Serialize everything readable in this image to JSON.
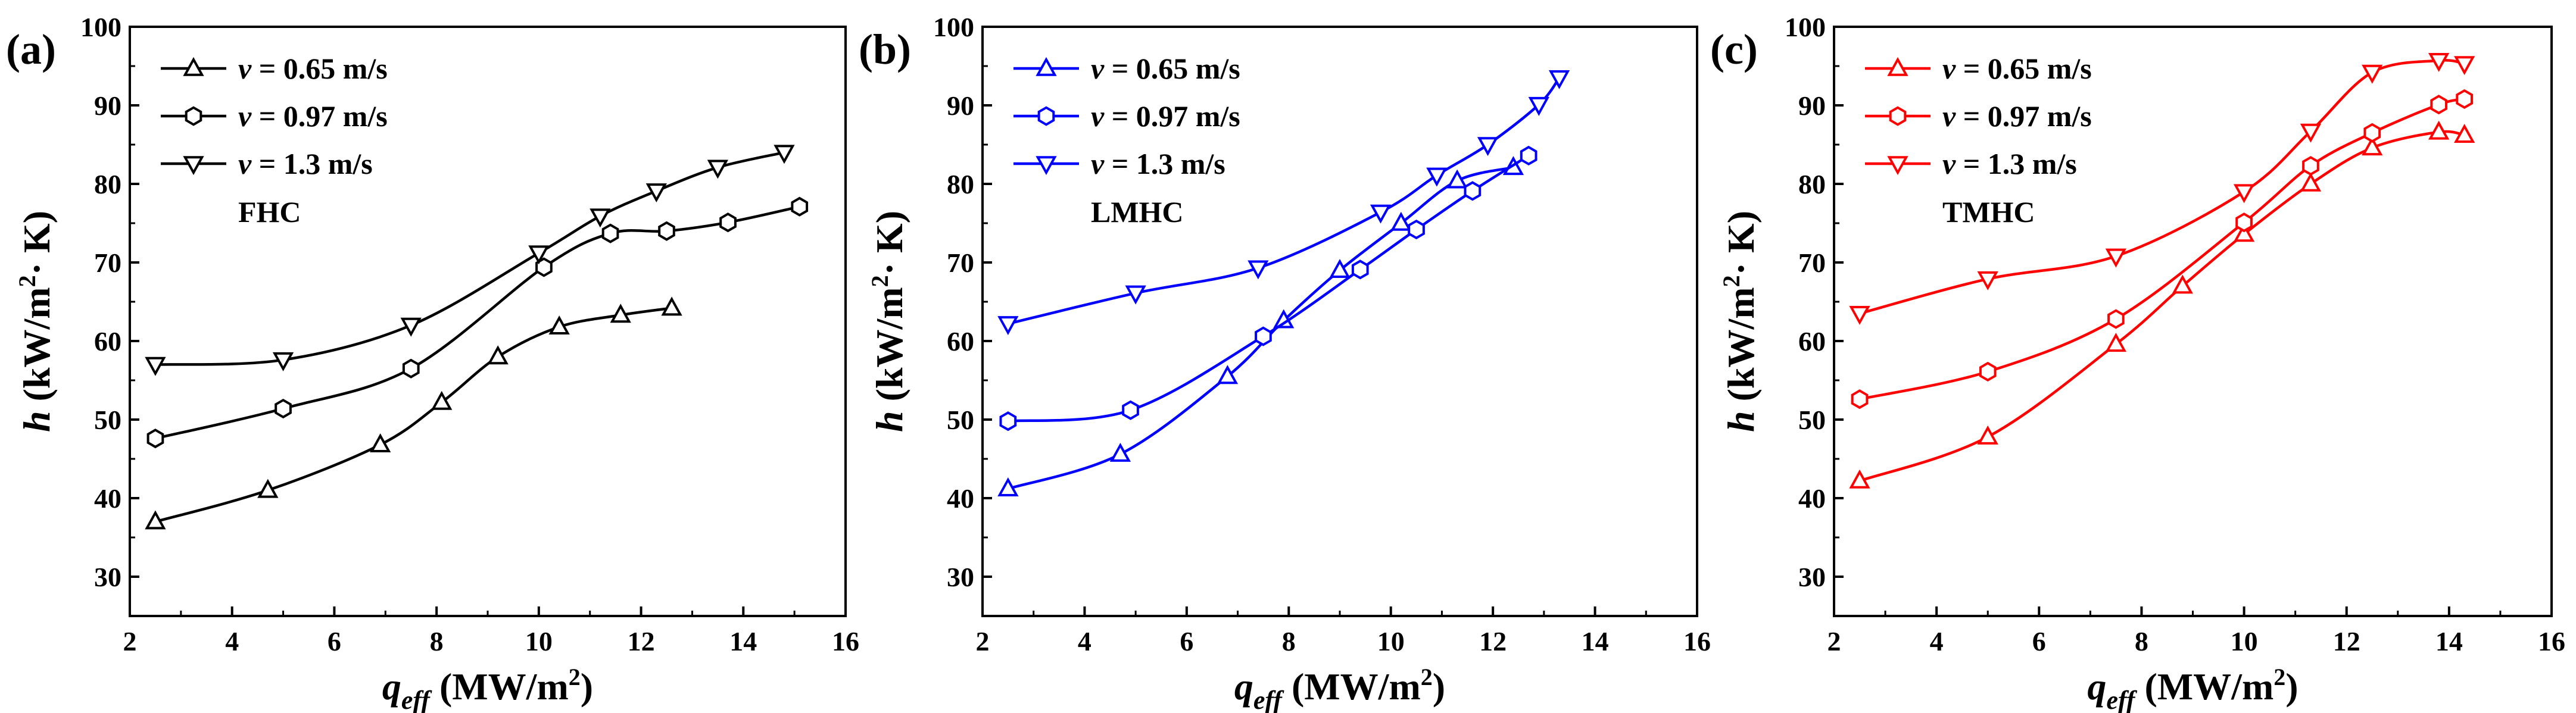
{
  "chart_data": [
    {
      "type": "line",
      "panel_letter": "(a)",
      "tag": "FHC",
      "color": "#000000",
      "xlabel": {
        "main": "q",
        "sub": "eff",
        "rest": " (MW/m",
        "sup": "2",
        "end": ")"
      },
      "ylabel": {
        "main": "h",
        "rest": " (kW/m",
        "sup": "2",
        "end": "· K)"
      },
      "xlim": [
        2,
        16
      ],
      "ylim": [
        25,
        100
      ],
      "xticks": [
        2,
        4,
        6,
        8,
        10,
        12,
        14,
        16
      ],
      "xtick_labels": [
        "2",
        "4",
        "6",
        "8",
        "10",
        "12",
        "14",
        "16"
      ],
      "yticks": [
        30,
        40,
        50,
        60,
        70,
        80,
        90,
        100
      ],
      "ytick_labels": [
        "30",
        "40",
        "50",
        "60",
        "70",
        "80",
        "90",
        "100"
      ],
      "legend_position": "top-left",
      "series": [
        {
          "legend": "v = 0.65 m/s",
          "legend_var": "v",
          "legend_rest": " = 0.65 m/s",
          "marker": "triangle-up",
          "x": [
            2.5,
            4.7,
            6.9,
            8.1,
            9.2,
            10.4,
            11.6,
            12.6
          ],
          "y": [
            37.0,
            41.0,
            46.8,
            52.2,
            58.0,
            61.8,
            63.3,
            64.2
          ]
        },
        {
          "legend": "v = 0.97 m/s",
          "legend_var": "v",
          "legend_rest": " = 0.97 m/s",
          "marker": "hexagon",
          "x": [
            2.5,
            5.0,
            7.5,
            10.1,
            11.4,
            12.5,
            13.7,
            15.1
          ],
          "y": [
            47.6,
            51.4,
            56.5,
            69.4,
            73.7,
            74.0,
            75.1,
            77.1
          ]
        },
        {
          "legend": "v = 1.3 m/s",
          "legend_var": "v",
          "legend_rest": " = 1.3 m/s",
          "marker": "triangle-down",
          "x": [
            2.5,
            5.0,
            7.5,
            10.0,
            11.2,
            12.3,
            13.5,
            14.8
          ],
          "y": [
            57.0,
            57.6,
            62.0,
            71.2,
            75.9,
            79.1,
            82.1,
            84.0
          ]
        }
      ]
    },
    {
      "type": "line",
      "panel_letter": "(b)",
      "tag": "LMHC",
      "color": "#0000ff",
      "xlabel": {
        "main": "q",
        "sub": "eff",
        "rest": " (MW/m",
        "sup": "2",
        "end": ")"
      },
      "ylabel": {
        "main": "h",
        "rest": " (kW/m",
        "sup": "2",
        "end": "· K)"
      },
      "xlim": [
        2,
        16
      ],
      "ylim": [
        25,
        100
      ],
      "xticks": [
        2,
        4,
        6,
        8,
        10,
        12,
        14,
        16
      ],
      "xtick_labels": [
        "2",
        "4",
        "6",
        "8",
        "10",
        "12",
        "14",
        "16"
      ],
      "yticks": [
        30,
        40,
        50,
        60,
        70,
        80,
        90,
        100
      ],
      "ytick_labels": [
        "30",
        "40",
        "50",
        "60",
        "70",
        "80",
        "90",
        "100"
      ],
      "legend_position": "top-left",
      "series": [
        {
          "legend": "v = 0.65 m/s",
          "legend_var": "v",
          "legend_rest": " = 0.65 m/s",
          "marker": "triangle-up",
          "x": [
            2.5,
            4.7,
            6.8,
            7.9,
            9.0,
            10.2,
            11.3,
            12.4
          ],
          "y": [
            41.2,
            45.6,
            55.5,
            62.6,
            69.0,
            75.0,
            80.4,
            82.1
          ]
        },
        {
          "legend": "v = 0.97 m/s",
          "legend_var": "v",
          "legend_rest": " = 0.97 m/s",
          "marker": "hexagon",
          "x": [
            2.5,
            4.9,
            7.5,
            9.4,
            10.5,
            11.6,
            12.7
          ],
          "y": [
            49.8,
            51.2,
            60.6,
            69.1,
            74.2,
            79.1,
            83.6
          ]
        },
        {
          "legend": "v = 1.3 m/s",
          "legend_var": "v",
          "legend_rest": " = 1.3 m/s",
          "marker": "triangle-down",
          "x": [
            2.5,
            5.0,
            7.4,
            9.8,
            10.9,
            11.9,
            12.9,
            13.3
          ],
          "y": [
            62.2,
            66.1,
            69.3,
            76.4,
            81.1,
            85.0,
            90.1,
            93.5
          ]
        }
      ]
    },
    {
      "type": "line",
      "panel_letter": "(c)",
      "tag": "TMHC",
      "color": "#ff0000",
      "xlabel": {
        "main": "q",
        "sub": "eff",
        "rest": " (MW/m",
        "sup": "2",
        "end": ")"
      },
      "ylabel": {
        "main": "h",
        "rest": " (kW/m",
        "sup": "2",
        "end": "· K)"
      },
      "xlim": [
        2,
        16
      ],
      "ylim": [
        25,
        100
      ],
      "xticks": [
        2,
        4,
        6,
        8,
        10,
        12,
        14,
        16
      ],
      "xtick_labels": [
        "2",
        "4",
        "6",
        "8",
        "10",
        "12",
        "14",
        "16"
      ],
      "yticks": [
        30,
        40,
        50,
        60,
        70,
        80,
        90,
        100
      ],
      "ytick_labels": [
        "30",
        "40",
        "50",
        "60",
        "70",
        "80",
        "90",
        "100"
      ],
      "legend_position": "top-left",
      "series": [
        {
          "legend": "v = 0.65 m/s",
          "legend_var": "v",
          "legend_rest": " = 0.65 m/s",
          "marker": "triangle-up",
          "x": [
            2.5,
            5.0,
            7.5,
            8.8,
            10.0,
            11.3,
            12.5,
            13.8,
            14.3
          ],
          "y": [
            42.2,
            47.8,
            59.6,
            67.0,
            73.6,
            80.0,
            84.6,
            86.6,
            86.2
          ]
        },
        {
          "legend": "v = 0.97 m/s",
          "legend_var": "v",
          "legend_rest": " = 0.97 m/s",
          "marker": "hexagon",
          "x": [
            2.5,
            5.0,
            7.5,
            10.0,
            11.3,
            12.5,
            13.8,
            14.3
          ],
          "y": [
            52.6,
            56.1,
            62.8,
            75.1,
            82.3,
            86.5,
            90.1,
            90.8
          ]
        },
        {
          "legend": "v = 1.3 m/s",
          "legend_var": "v",
          "legend_rest": " = 1.3 m/s",
          "marker": "triangle-down",
          "x": [
            2.5,
            5.0,
            7.5,
            10.0,
            11.3,
            12.5,
            13.8,
            14.3
          ],
          "y": [
            63.5,
            67.9,
            70.8,
            79.0,
            86.7,
            94.2,
            95.7,
            95.3
          ]
        }
      ]
    }
  ]
}
